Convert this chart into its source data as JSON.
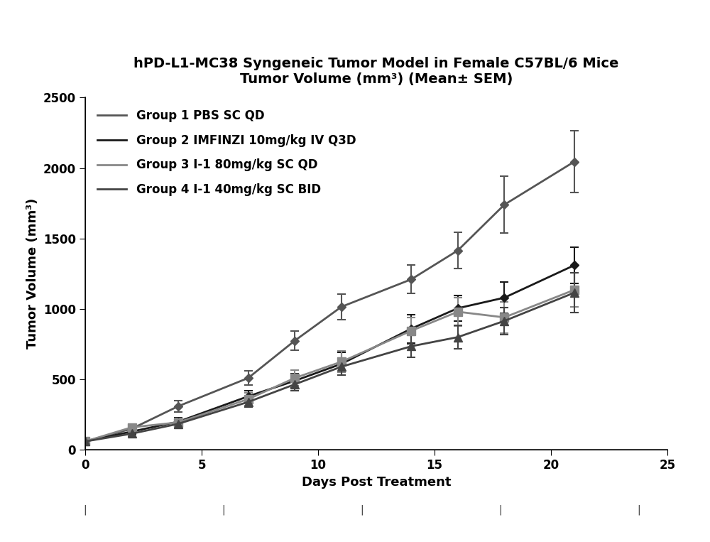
{
  "title_line1": "hPD-L1-MC38 Syngeneic Tumor Model in Female C57BL/6 Mice",
  "title_line2": "Tumor Volume (mm³) (Mean± SEM)",
  "xlabel": "Days Post Treatment",
  "ylabel": "Tumor Volume (mm³)",
  "xlim": [
    0,
    25
  ],
  "ylim": [
    0,
    2500
  ],
  "xticks": [
    0,
    5,
    10,
    15,
    20,
    25
  ],
  "yticks": [
    0,
    500,
    1000,
    1500,
    2000,
    2500
  ],
  "background_color": "#ffffff",
  "groups": [
    {
      "label": "Group 1 PBS SC QD",
      "color": "#555555",
      "linewidth": 2.0,
      "marker": "D",
      "markersize": 6,
      "x": [
        0,
        2,
        4,
        7,
        9,
        11,
        14,
        16,
        18,
        21
      ],
      "y": [
        60,
        150,
        310,
        510,
        775,
        1015,
        1210,
        1415,
        1740,
        2045
      ],
      "yerr": [
        5,
        30,
        40,
        50,
        70,
        90,
        100,
        130,
        200,
        220
      ]
    },
    {
      "label": "Group 2 IMFINZI 10mg/kg IV Q3D",
      "color": "#1a1a1a",
      "linewidth": 2.0,
      "marker": "D",
      "markersize": 6,
      "x": [
        0,
        2,
        4,
        7,
        9,
        11,
        14,
        16,
        18,
        21
      ],
      "y": [
        60,
        130,
        200,
        380,
        490,
        610,
        860,
        1005,
        1080,
        1310
      ],
      "yerr": [
        5,
        20,
        30,
        40,
        50,
        80,
        100,
        90,
        110,
        130
      ]
    },
    {
      "label": "Group 3 I-1 80mg/kg SC QD",
      "color": "#888888",
      "linewidth": 2.0,
      "marker": "s",
      "markersize": 8,
      "x": [
        0,
        2,
        4,
        7,
        9,
        11,
        14,
        16,
        18,
        21
      ],
      "y": [
        60,
        160,
        195,
        360,
        510,
        625,
        845,
        980,
        940,
        1135
      ],
      "yerr": [
        5,
        25,
        30,
        45,
        55,
        75,
        95,
        100,
        110,
        120
      ]
    },
    {
      "label": "Group 4 I-1 40mg/kg SC BID",
      "color": "#444444",
      "linewidth": 2.0,
      "marker": "^",
      "markersize": 8,
      "x": [
        0,
        2,
        4,
        7,
        9,
        11,
        14,
        16,
        18,
        21
      ],
      "y": [
        60,
        115,
        185,
        340,
        465,
        590,
        735,
        800,
        915,
        1115
      ],
      "yerr": [
        5,
        18,
        25,
        35,
        45,
        60,
        80,
        85,
        95,
        140
      ]
    }
  ],
  "legend_loc": "upper left",
  "title_fontsize": 14,
  "axis_label_fontsize": 13,
  "tick_fontsize": 12,
  "legend_fontsize": 12
}
